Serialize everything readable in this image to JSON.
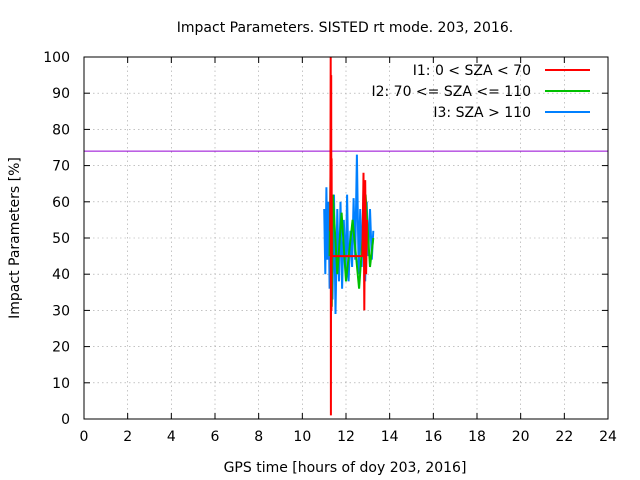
{
  "chart_data": {
    "type": "line",
    "title": "Impact Parameters. SISTED rt mode. 203, 2016.",
    "xlabel": "GPS time [hours of doy 203, 2016]",
    "ylabel": "Impact Parameters [%]",
    "xlim": [
      0,
      24
    ],
    "ylim": [
      0,
      100
    ],
    "xticks": [
      0,
      2,
      4,
      6,
      8,
      10,
      12,
      14,
      16,
      18,
      20,
      22,
      24
    ],
    "yticks": [
      0,
      10,
      20,
      30,
      40,
      50,
      60,
      70,
      80,
      90,
      100
    ],
    "grid": true,
    "legend_position": "top-right",
    "reference_line": {
      "y": 74,
      "color": "#9400d3"
    },
    "series": [
      {
        "name": "I1: 0 < SZA < 70",
        "color": "#ff0000",
        "x": [
          11.28,
          11.3,
          11.31,
          11.32,
          11.33,
          11.34,
          11.35,
          12.75,
          12.8,
          12.84,
          12.88,
          12.92,
          12.96
        ],
        "y": [
          52,
          100,
          1,
          95,
          30,
          72,
          45,
          45,
          68,
          30,
          66,
          40,
          55
        ]
      },
      {
        "name": "I2: 70 <= SZA <= 110",
        "color": "#00c000",
        "x": [
          11.25,
          11.3,
          11.35,
          11.4,
          11.6,
          11.8,
          12.0,
          12.3,
          12.6,
          12.9,
          13.1,
          13.25
        ],
        "y": [
          45,
          72,
          31,
          62,
          40,
          57,
          38,
          55,
          36,
          62,
          42,
          50
        ]
      },
      {
        "name": "I3: SZA > 110",
        "color": "#0080ff",
        "x": [
          11.0,
          11.05,
          11.1,
          11.15,
          11.2,
          11.25,
          11.3,
          11.38,
          11.45,
          11.52,
          11.6,
          11.68,
          11.75,
          11.82,
          11.9,
          11.98,
          12.05,
          12.12,
          12.2,
          12.28,
          12.35,
          12.42,
          12.5,
          12.58,
          12.65,
          12.72,
          12.8,
          12.88,
          12.95,
          13.02,
          13.1,
          13.18,
          13.25
        ],
        "y": [
          58,
          40,
          64,
          44,
          60,
          36,
          70,
          33,
          62,
          29,
          58,
          38,
          60,
          36,
          55,
          40,
          62,
          38,
          52,
          42,
          61,
          44,
          73,
          40,
          58,
          42,
          63,
          38,
          60,
          45,
          58,
          44,
          52
        ]
      }
    ]
  }
}
